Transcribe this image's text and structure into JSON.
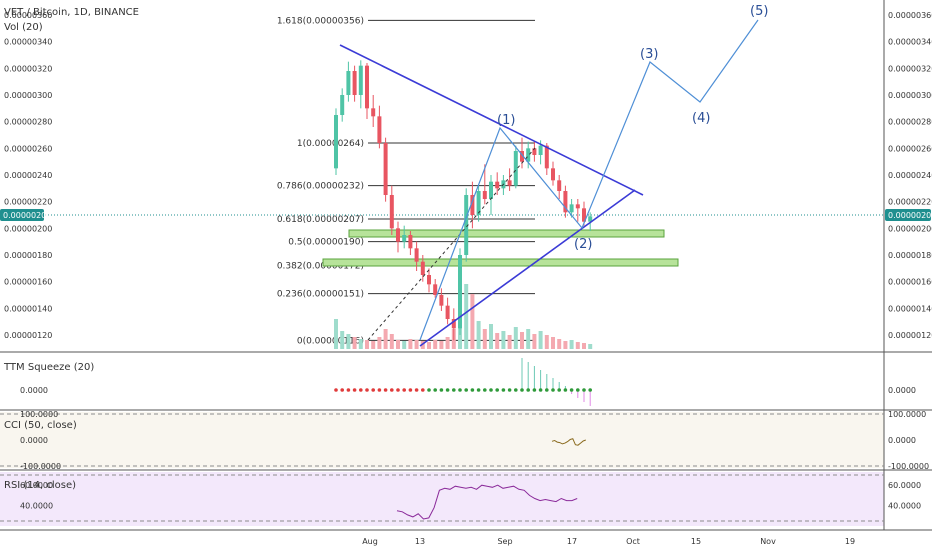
{
  "header": {
    "title": "VET / Bitcoin, 1D, BINANCE",
    "volume_label": "Vol (20)"
  },
  "last_price": "0.00000209",
  "chart_data": [
    {
      "type": "candlestick",
      "pane": "price",
      "price_ticks": [
        "0.00000360",
        "0.00000340",
        "0.00000320",
        "0.00000300",
        "0.00000280",
        "0.00000260",
        "0.00000240",
        "0.00000220",
        "0.00000200",
        "0.00000180",
        "0.00000160",
        "0.00000140",
        "0.00000120"
      ],
      "ylim": [
        1.08e-06,
        3.68e-06
      ],
      "x_ticks": [
        "Aug",
        "13",
        "Sep",
        "17",
        "Oct",
        "15",
        "Nov",
        "19"
      ],
      "candles": [
        [
          2.45e-06,
          2.9e-06,
          2.4e-06,
          2.85e-06
        ],
        [
          2.85e-06,
          3.05e-06,
          2.8e-06,
          3e-06
        ],
        [
          3e-06,
          3.25e-06,
          2.95e-06,
          3.18e-06
        ],
        [
          3.18e-06,
          3.22e-06,
          2.95e-06,
          3e-06
        ],
        [
          3e-06,
          3.26e-06,
          2.9e-06,
          3.22e-06
        ],
        [
          3.22e-06,
          3.24e-06,
          2.82e-06,
          2.9e-06
        ],
        [
          2.9e-06,
          3e-06,
          2.76e-06,
          2.84e-06
        ],
        [
          2.84e-06,
          2.92e-06,
          2.6e-06,
          2.64e-06
        ],
        [
          2.64e-06,
          2.68e-06,
          2.2e-06,
          2.25e-06
        ],
        [
          2.25e-06,
          2.32e-06,
          1.95e-06,
          2e-06
        ],
        [
          2e-06,
          2.05e-06,
          1.82e-06,
          1.9e-06
        ],
        [
          1.9e-06,
          2.02e-06,
          1.85e-06,
          1.95e-06
        ],
        [
          1.95e-06,
          1.98e-06,
          1.8e-06,
          1.85e-06
        ],
        [
          1.85e-06,
          1.9e-06,
          1.68e-06,
          1.75e-06
        ],
        [
          1.75e-06,
          1.8e-06,
          1.6e-06,
          1.65e-06
        ],
        [
          1.65e-06,
          1.7e-06,
          1.52e-06,
          1.58e-06
        ],
        [
          1.58e-06,
          1.62e-06,
          1.48e-06,
          1.5e-06
        ],
        [
          1.5e-06,
          1.55e-06,
          1.38e-06,
          1.42e-06
        ],
        [
          1.42e-06,
          1.48e-06,
          1.28e-06,
          1.32e-06
        ],
        [
          1.32e-06,
          1.4e-06,
          1.16e-06,
          1.25e-06
        ],
        [
          1.25e-06,
          1.85e-06,
          1.2e-06,
          1.8e-06
        ],
        [
          1.8e-06,
          2.3e-06,
          1.75e-06,
          2.25e-06
        ],
        [
          2.25e-06,
          2.35e-06,
          2e-06,
          2.1e-06
        ],
        [
          2.1e-06,
          2.32e-06,
          2.05e-06,
          2.28e-06
        ],
        [
          2.28e-06,
          2.48e-06,
          2.18e-06,
          2.22e-06
        ],
        [
          2.22e-06,
          2.4e-06,
          2.1e-06,
          2.35e-06
        ],
        [
          2.35e-06,
          2.42e-06,
          2.25e-06,
          2.3e-06
        ],
        [
          2.3e-06,
          2.4e-06,
          2.25e-06,
          2.36e-06
        ],
        [
          2.36e-06,
          2.45e-06,
          2.28e-06,
          2.32e-06
        ],
        [
          2.32e-06,
          2.62e-06,
          2.3e-06,
          2.58e-06
        ],
        [
          2.58e-06,
          2.68e-06,
          2.45e-06,
          2.5e-06
        ],
        [
          2.5e-06,
          2.65e-06,
          2.45e-06,
          2.6e-06
        ],
        [
          2.6e-06,
          2.65e-06,
          2.5e-06,
          2.55e-06
        ],
        [
          2.55e-06,
          2.66e-06,
          2.48e-06,
          2.62e-06
        ],
        [
          2.62e-06,
          2.64e-06,
          2.4e-06,
          2.45e-06
        ],
        [
          2.45e-06,
          2.5e-06,
          2.32e-06,
          2.36e-06
        ],
        [
          2.36e-06,
          2.4e-06,
          2.22e-06,
          2.28e-06
        ],
        [
          2.28e-06,
          2.32e-06,
          2.08e-06,
          2.12e-06
        ],
        [
          2.12e-06,
          2.22e-06,
          2.08e-06,
          2.18e-06
        ],
        [
          2.18e-06,
          2.22e-06,
          2.05e-06,
          2.15e-06
        ],
        [
          2.15e-06,
          2.2e-06,
          2.02e-06,
          2.05e-06
        ],
        [
          2.05e-06,
          2.12e-06,
          1.98e-06,
          2.09e-06
        ]
      ],
      "volumes": [
        30,
        18,
        15,
        12,
        10,
        9,
        8,
        12,
        20,
        15,
        9,
        8,
        10,
        9,
        8,
        7,
        9,
        8,
        12,
        20,
        40,
        65,
        55,
        28,
        20,
        25,
        16,
        18,
        14,
        22,
        17,
        20,
        15,
        18,
        14,
        12,
        10,
        8,
        9,
        7,
        6,
        5
      ],
      "fib_levels": [
        {
          "label": "1.618(0.00000356)",
          "price": 3.56e-06
        },
        {
          "label": "1(0.00000264)",
          "price": 2.64e-06
        },
        {
          "label": "0.786(0.00000232)",
          "price": 2.32e-06
        },
        {
          "label": "0.618(0.00000207)",
          "price": 2.07e-06
        },
        {
          "label": "0.5(0.00000190)",
          "price": 1.9e-06
        },
        {
          "label": "0.382(0.00000172)",
          "price": 1.72e-06
        },
        {
          "label": "0.236(0.00000151)",
          "price": 1.51e-06
        },
        {
          "label": "0(0.00000116)",
          "price": 1.16e-06
        }
      ],
      "waves": [
        "(1)",
        "(2)",
        "(3)",
        "(4)",
        "(5)"
      ]
    },
    {
      "type": "histogram",
      "pane": "ttm",
      "label": "TTM Squeeze (20)",
      "ticks": [
        "0.0000"
      ],
      "values": [
        0,
        0,
        0,
        0,
        0,
        0,
        0,
        0,
        0,
        0,
        0,
        0,
        0,
        0,
        0,
        0,
        0,
        0,
        0,
        0,
        0,
        0,
        0,
        0,
        0,
        0,
        0,
        0,
        0,
        0,
        32,
        28,
        24,
        20,
        16,
        12,
        8,
        4,
        -4,
        -8,
        -12,
        -16
      ]
    },
    {
      "type": "line",
      "pane": "cci",
      "label": "CCI (50, close)",
      "ticks": [
        "100.0000",
        "0.0000",
        "-100.0000"
      ],
      "ylim": [
        -100,
        100
      ],
      "values": [
        -5,
        -2,
        -8,
        -10,
        -15,
        -12,
        -6,
        2,
        5,
        -18,
        -20,
        -12,
        -4,
        0
      ]
    },
    {
      "type": "line",
      "pane": "rsi",
      "label": "RSI (14, close)",
      "ticks": [
        "60.0000",
        "40.0000"
      ],
      "ylim": [
        25,
        70
      ],
      "values": [
        35,
        34,
        31,
        29,
        32,
        27,
        28,
        38,
        55,
        57,
        56,
        59,
        58,
        57,
        58,
        56,
        60,
        59,
        58,
        60,
        57,
        58,
        59,
        56,
        55,
        50,
        47,
        45,
        46,
        45,
        44,
        47,
        45,
        45,
        47
      ]
    }
  ]
}
